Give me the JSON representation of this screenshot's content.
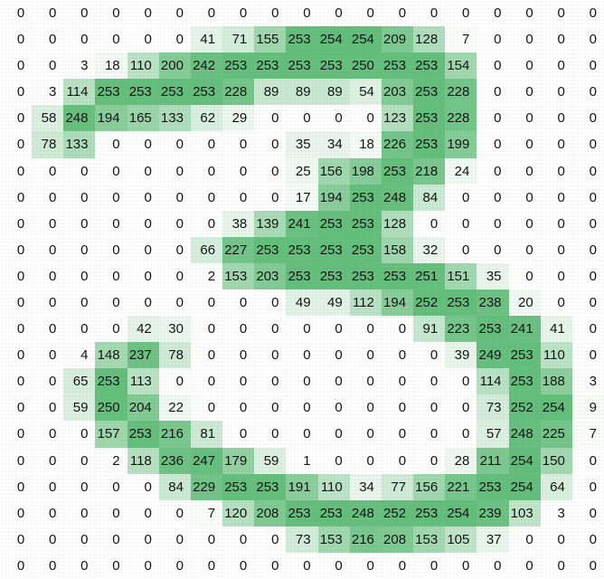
{
  "chart_data": {
    "type": "heatmap",
    "rows": 22,
    "cols": 19,
    "title": "",
    "value_range": [
      0,
      254
    ],
    "colors": {
      "min": "#ffffff",
      "max": "#63be7b",
      "text": "#141414",
      "background": "#ffffff"
    },
    "legend": "none",
    "grid": "off",
    "values": [
      [
        0,
        0,
        0,
        0,
        0,
        0,
        0,
        0,
        0,
        0,
        0,
        0,
        0,
        0,
        0,
        0,
        0,
        0,
        0
      ],
      [
        0,
        0,
        0,
        0,
        0,
        0,
        41,
        71,
        155,
        253,
        254,
        254,
        209,
        128,
        7,
        0,
        0,
        0,
        0
      ],
      [
        0,
        0,
        3,
        18,
        110,
        200,
        242,
        253,
        253,
        253,
        253,
        250,
        253,
        253,
        154,
        0,
        0,
        0,
        0
      ],
      [
        0,
        3,
        114,
        253,
        253,
        253,
        253,
        228,
        89,
        89,
        89,
        54,
        203,
        253,
        228,
        0,
        0,
        0,
        0
      ],
      [
        0,
        58,
        248,
        194,
        165,
        133,
        62,
        29,
        0,
        0,
        0,
        0,
        123,
        253,
        228,
        0,
        0,
        0,
        0
      ],
      [
        0,
        78,
        133,
        0,
        0,
        0,
        0,
        0,
        0,
        35,
        34,
        18,
        226,
        253,
        199,
        0,
        0,
        0,
        0
      ],
      [
        0,
        0,
        0,
        0,
        0,
        0,
        0,
        0,
        0,
        25,
        156,
        198,
        253,
        218,
        24,
        0,
        0,
        0,
        0
      ],
      [
        0,
        0,
        0,
        0,
        0,
        0,
        0,
        0,
        0,
        17,
        194,
        253,
        248,
        84,
        0,
        0,
        0,
        0,
        0
      ],
      [
        0,
        0,
        0,
        0,
        0,
        0,
        0,
        38,
        139,
        241,
        253,
        253,
        128,
        0,
        0,
        0,
        0,
        0,
        0
      ],
      [
        0,
        0,
        0,
        0,
        0,
        0,
        66,
        227,
        253,
        253,
        253,
        253,
        158,
        32,
        0,
        0,
        0,
        0,
        0
      ],
      [
        0,
        0,
        0,
        0,
        0,
        0,
        2,
        153,
        203,
        253,
        253,
        253,
        253,
        251,
        151,
        35,
        0,
        0,
        0
      ],
      [
        0,
        0,
        0,
        0,
        0,
        0,
        0,
        0,
        0,
        49,
        49,
        112,
        194,
        252,
        253,
        238,
        20,
        0,
        0
      ],
      [
        0,
        0,
        0,
        0,
        42,
        30,
        0,
        0,
        0,
        0,
        0,
        0,
        0,
        91,
        223,
        253,
        241,
        41,
        0
      ],
      [
        0,
        0,
        4,
        148,
        237,
        78,
        0,
        0,
        0,
        0,
        0,
        0,
        0,
        0,
        39,
        249,
        253,
        110,
        0
      ],
      [
        0,
        0,
        65,
        253,
        113,
        0,
        0,
        0,
        0,
        0,
        0,
        0,
        0,
        0,
        0,
        114,
        253,
        188,
        3
      ],
      [
        0,
        0,
        59,
        250,
        204,
        22,
        0,
        0,
        0,
        0,
        0,
        0,
        0,
        0,
        0,
        73,
        252,
        254,
        9
      ],
      [
        0,
        0,
        0,
        157,
        253,
        216,
        81,
        0,
        0,
        0,
        0,
        0,
        0,
        0,
        0,
        57,
        248,
        225,
        7
      ],
      [
        0,
        0,
        0,
        2,
        118,
        236,
        247,
        179,
        59,
        1,
        0,
        0,
        0,
        0,
        28,
        211,
        254,
        150,
        0
      ],
      [
        0,
        0,
        0,
        0,
        0,
        84,
        229,
        253,
        253,
        191,
        110,
        34,
        77,
        156,
        221,
        253,
        254,
        64,
        0
      ],
      [
        0,
        0,
        0,
        0,
        0,
        0,
        7,
        120,
        208,
        253,
        253,
        248,
        252,
        253,
        254,
        239,
        103,
        3,
        0
      ],
      [
        0,
        0,
        0,
        0,
        0,
        0,
        0,
        0,
        0,
        73,
        153,
        216,
        208,
        153,
        105,
        37,
        0,
        0,
        0
      ],
      [
        0,
        0,
        0,
        0,
        0,
        0,
        0,
        0,
        0,
        0,
        0,
        0,
        0,
        0,
        0,
        0,
        0,
        0,
        0
      ]
    ]
  }
}
